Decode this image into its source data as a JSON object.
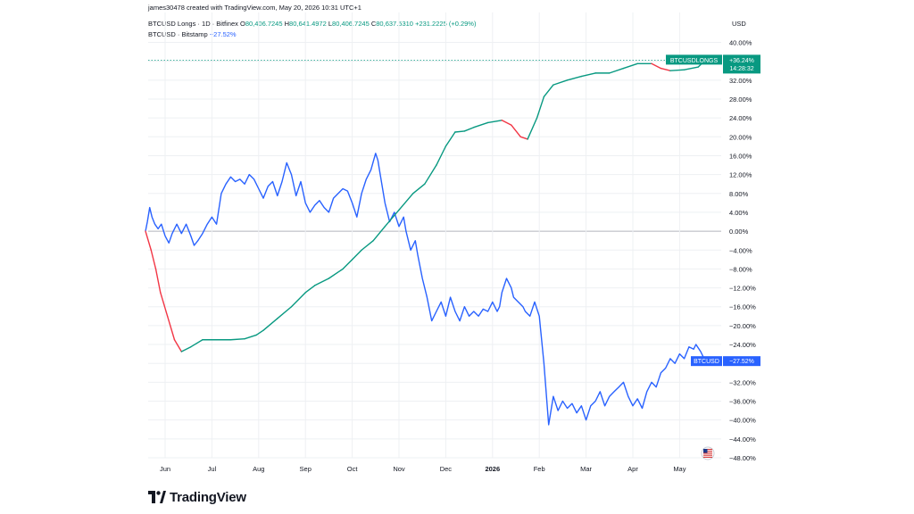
{
  "header": {
    "credit": "james30478 created with TradingView.com, May 20, 2026 10:31 UTC+1",
    "line1_title": "BTCUSD Longs · 1D · Bitfinex",
    "line1_o_label": "O",
    "line1_o": "80,406.7245",
    "line1_h_label": "H",
    "line1_h": "80,641.4972",
    "line1_l_label": "L",
    "line1_l": "80,406.7245",
    "line1_c_label": "C",
    "line1_c": "80,637.5310",
    "line1_change": "+231.2225 (+0.29%)",
    "line2_title": "BTCUSD · Bitstamp",
    "line2_change": "−27.52%"
  },
  "axis_currency": "USD",
  "brand": "TradingView",
  "colors": {
    "longs_up": "#089981",
    "longs_down": "#f23645",
    "btcusd": "#2962ff",
    "grid": "#eef0f3",
    "zero_line": "#b2b5be"
  },
  "badges": {
    "longs_name": "BTCUSDLONGS",
    "longs_value": "+36.24%",
    "longs_countdown": "14:28:32",
    "btc_name": "BTCUSD",
    "btc_value": "−27.52%"
  },
  "chart_data": {
    "type": "line",
    "y_unit": "percent change",
    "ylim": [
      -50,
      42
    ],
    "y_ticks": [
      40,
      36,
      32,
      28,
      24,
      20,
      16,
      12,
      8,
      4,
      0,
      -4,
      -8,
      -12,
      -16,
      -20,
      -24,
      -28,
      -32,
      -36,
      -40,
      -44,
      -48
    ],
    "y_tick_labels": [
      "40.00%",
      "36.00%",
      "32.00%",
      "28.00%",
      "24.00%",
      "20.00%",
      "16.00%",
      "12.00%",
      "8.00%",
      "4.00%",
      "0.00%",
      "−4.00%",
      "−8.00%",
      "−12.00%",
      "−16.00%",
      "−20.00%",
      "−24.00%",
      "−28.00%",
      "−32.00%",
      "−36.00%",
      "−40.00%",
      "−44.00%",
      "−48.00%"
    ],
    "x_range_months": [
      -0.42,
      12.15
    ],
    "x_ticks": [
      {
        "m": 0.0,
        "label": "Jun",
        "bold": false
      },
      {
        "m": 1.0,
        "label": "Jul",
        "bold": false
      },
      {
        "m": 2.0,
        "label": "Aug",
        "bold": false
      },
      {
        "m": 3.0,
        "label": "Sep",
        "bold": false
      },
      {
        "m": 4.0,
        "label": "Oct",
        "bold": false
      },
      {
        "m": 5.0,
        "label": "Nov",
        "bold": false
      },
      {
        "m": 6.0,
        "label": "Dec",
        "bold": false
      },
      {
        "m": 7.0,
        "label": "2026",
        "bold": true
      },
      {
        "m": 8.0,
        "label": "Feb",
        "bold": false
      },
      {
        "m": 9.0,
        "label": "Mar",
        "bold": false
      },
      {
        "m": 10.0,
        "label": "Apr",
        "bold": false
      },
      {
        "m": 11.0,
        "label": "May",
        "bold": false
      }
    ],
    "series": [
      {
        "name": "BTCUSD Longs",
        "points": [
          [
            -0.42,
            0
          ],
          [
            -0.3,
            -4
          ],
          [
            -0.2,
            -8
          ],
          [
            -0.1,
            -13
          ],
          [
            0.05,
            -18
          ],
          [
            0.2,
            -23
          ],
          [
            0.35,
            -25.5
          ],
          [
            0.55,
            -24.5
          ],
          [
            0.8,
            -23
          ],
          [
            1.1,
            -23
          ],
          [
            1.4,
            -23
          ],
          [
            1.7,
            -22.8
          ],
          [
            1.95,
            -22
          ],
          [
            2.1,
            -21
          ],
          [
            2.4,
            -18.5
          ],
          [
            2.7,
            -16
          ],
          [
            3.0,
            -13
          ],
          [
            3.2,
            -11.5
          ],
          [
            3.5,
            -10
          ],
          [
            3.8,
            -8
          ],
          [
            4.0,
            -6
          ],
          [
            4.2,
            -4
          ],
          [
            4.45,
            -2
          ],
          [
            4.7,
            1
          ],
          [
            5.0,
            4.5
          ],
          [
            5.3,
            8
          ],
          [
            5.55,
            10
          ],
          [
            5.8,
            14
          ],
          [
            6.0,
            18
          ],
          [
            6.2,
            21
          ],
          [
            6.4,
            21.2
          ],
          [
            6.6,
            22
          ],
          [
            6.9,
            23
          ],
          [
            7.2,
            23.5
          ],
          [
            7.4,
            22.5
          ],
          [
            7.6,
            20
          ],
          [
            7.75,
            19.5
          ],
          [
            7.95,
            24
          ],
          [
            8.1,
            28.5
          ],
          [
            8.3,
            31
          ],
          [
            8.6,
            32
          ],
          [
            8.9,
            32.8
          ],
          [
            9.2,
            33.5
          ],
          [
            9.5,
            33.5
          ],
          [
            9.8,
            34.5
          ],
          [
            10.1,
            35.5
          ],
          [
            10.4,
            35.5
          ],
          [
            10.6,
            34.5
          ],
          [
            10.8,
            34
          ],
          [
            11.1,
            34.2
          ],
          [
            11.4,
            34.8
          ],
          [
            11.55,
            36.24
          ]
        ]
      },
      {
        "name": "BTCUSD",
        "points": [
          [
            -0.42,
            0
          ],
          [
            -0.38,
            2
          ],
          [
            -0.33,
            5
          ],
          [
            -0.28,
            3
          ],
          [
            -0.22,
            1.5
          ],
          [
            -0.15,
            0.5
          ],
          [
            -0.08,
            1.5
          ],
          [
            0.0,
            -1
          ],
          [
            0.08,
            -2.5
          ],
          [
            0.15,
            -0.5
          ],
          [
            0.25,
            1.5
          ],
          [
            0.35,
            -0.5
          ],
          [
            0.45,
            1.5
          ],
          [
            0.55,
            -1
          ],
          [
            0.62,
            -3
          ],
          [
            0.7,
            -2
          ],
          [
            0.8,
            -0.5
          ],
          [
            0.9,
            1.5
          ],
          [
            1.0,
            3
          ],
          [
            1.1,
            1.5
          ],
          [
            1.2,
            8
          ],
          [
            1.3,
            10
          ],
          [
            1.4,
            11.5
          ],
          [
            1.5,
            10.5
          ],
          [
            1.6,
            11
          ],
          [
            1.7,
            10
          ],
          [
            1.8,
            12
          ],
          [
            1.9,
            11
          ],
          [
            2.0,
            9
          ],
          [
            2.1,
            7
          ],
          [
            2.2,
            9.5
          ],
          [
            2.3,
            10.5
          ],
          [
            2.4,
            7.5
          ],
          [
            2.5,
            10.5
          ],
          [
            2.6,
            14.5
          ],
          [
            2.7,
            12
          ],
          [
            2.8,
            7.5
          ],
          [
            2.9,
            10.5
          ],
          [
            3.0,
            6
          ],
          [
            3.1,
            4
          ],
          [
            3.2,
            5.5
          ],
          [
            3.3,
            6.5
          ],
          [
            3.4,
            5
          ],
          [
            3.5,
            4
          ],
          [
            3.6,
            7
          ],
          [
            3.7,
            8
          ],
          [
            3.8,
            9
          ],
          [
            3.9,
            8.5
          ],
          [
            4.0,
            6
          ],
          [
            4.1,
            3
          ],
          [
            4.2,
            8
          ],
          [
            4.3,
            11
          ],
          [
            4.4,
            13
          ],
          [
            4.5,
            16.5
          ],
          [
            4.55,
            15
          ],
          [
            4.6,
            12
          ],
          [
            4.7,
            6
          ],
          [
            4.8,
            2
          ],
          [
            4.9,
            4
          ],
          [
            5.0,
            1
          ],
          [
            5.1,
            3
          ],
          [
            5.15,
            0
          ],
          [
            5.25,
            -4
          ],
          [
            5.35,
            -2
          ],
          [
            5.4,
            -5
          ],
          [
            5.5,
            -10
          ],
          [
            5.6,
            -14
          ],
          [
            5.7,
            -19
          ],
          [
            5.8,
            -17
          ],
          [
            5.9,
            -15
          ],
          [
            6.0,
            -18
          ],
          [
            6.1,
            -14
          ],
          [
            6.2,
            -17
          ],
          [
            6.3,
            -19
          ],
          [
            6.4,
            -16
          ],
          [
            6.5,
            -18
          ],
          [
            6.6,
            -17
          ],
          [
            6.7,
            -18
          ],
          [
            6.8,
            -16.5
          ],
          [
            6.9,
            -17
          ],
          [
            7.0,
            -15
          ],
          [
            7.1,
            -17
          ],
          [
            7.15,
            -16
          ],
          [
            7.2,
            -13
          ],
          [
            7.3,
            -10
          ],
          [
            7.4,
            -12
          ],
          [
            7.45,
            -14
          ],
          [
            7.55,
            -15
          ],
          [
            7.65,
            -16
          ],
          [
            7.7,
            -17
          ],
          [
            7.8,
            -18
          ],
          [
            7.9,
            -15
          ],
          [
            8.0,
            -18
          ],
          [
            8.1,
            -28
          ],
          [
            8.2,
            -41
          ],
          [
            8.3,
            -35
          ],
          [
            8.4,
            -38
          ],
          [
            8.5,
            -36
          ],
          [
            8.6,
            -37.5
          ],
          [
            8.7,
            -36.5
          ],
          [
            8.8,
            -38.5
          ],
          [
            8.9,
            -37
          ],
          [
            9.0,
            -40
          ],
          [
            9.1,
            -37
          ],
          [
            9.2,
            -36
          ],
          [
            9.3,
            -34
          ],
          [
            9.4,
            -37
          ],
          [
            9.5,
            -35
          ],
          [
            9.6,
            -34
          ],
          [
            9.7,
            -33
          ],
          [
            9.8,
            -32
          ],
          [
            9.9,
            -35
          ],
          [
            10.0,
            -37
          ],
          [
            10.1,
            -35.5
          ],
          [
            10.2,
            -37.5
          ],
          [
            10.3,
            -34
          ],
          [
            10.4,
            -32
          ],
          [
            10.5,
            -33
          ],
          [
            10.6,
            -30
          ],
          [
            10.7,
            -29
          ],
          [
            10.8,
            -27
          ],
          [
            10.9,
            -28
          ],
          [
            11.0,
            -26
          ],
          [
            11.1,
            -27
          ],
          [
            11.2,
            -24.5
          ],
          [
            11.3,
            -25
          ],
          [
            11.35,
            -24
          ],
          [
            11.45,
            -25.5
          ],
          [
            11.55,
            -27.52
          ]
        ]
      }
    ]
  }
}
